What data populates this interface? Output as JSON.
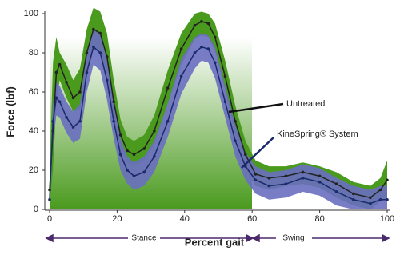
{
  "chart_data": {
    "type": "band-line",
    "x_label": "Percent gait",
    "y_label": "Force (lbf)",
    "xlim": [
      0,
      100
    ],
    "ylim": [
      0,
      100
    ],
    "xticks": [
      0,
      20,
      40,
      60,
      80,
      100
    ],
    "yticks": [
      0,
      20,
      40,
      60,
      80,
      100
    ],
    "x": [
      0,
      1,
      2,
      3,
      5,
      7,
      9,
      11,
      13,
      15,
      17,
      19,
      21,
      23,
      25,
      28,
      31,
      35,
      39,
      43,
      45,
      47,
      49,
      52,
      55,
      58,
      61,
      65,
      70,
      75,
      80,
      85,
      90,
      95,
      98,
      100
    ],
    "series": [
      {
        "name": "Untreated",
        "color": "#222222",
        "band_color": "#4a9a1e",
        "values": [
          10,
          40,
          70,
          74,
          65,
          57,
          60,
          80,
          92,
          90,
          78,
          55,
          38,
          30,
          28,
          31,
          40,
          62,
          82,
          94,
          96,
          95,
          88,
          68,
          45,
          28,
          18,
          16,
          17,
          19,
          17,
          13,
          8,
          6,
          10,
          15
        ],
        "upper": [
          18,
          75,
          88,
          80,
          74,
          66,
          72,
          92,
          103,
          101,
          90,
          66,
          46,
          37,
          35,
          38,
          48,
          71,
          90,
          100,
          101,
          100,
          95,
          76,
          53,
          35,
          25,
          22,
          22,
          24,
          22,
          19,
          14,
          12,
          16,
          25
        ],
        "lower": [
          2,
          20,
          55,
          66,
          57,
          50,
          51,
          70,
          82,
          80,
          68,
          46,
          31,
          24,
          22,
          25,
          33,
          54,
          74,
          87,
          89,
          88,
          81,
          61,
          38,
          21,
          12,
          10,
          12,
          13,
          11,
          6,
          2,
          0,
          4,
          5
        ]
      },
      {
        "name": "KineSpring® System",
        "color": "#1a2a6a",
        "band_color": "#6a6fc0",
        "values": [
          5,
          45,
          57,
          55,
          47,
          42,
          45,
          70,
          83,
          80,
          66,
          45,
          28,
          20,
          17,
          19,
          27,
          45,
          68,
          80,
          83,
          82,
          75,
          55,
          35,
          22,
          15,
          12,
          13,
          16,
          14,
          9,
          5,
          3,
          5,
          5
        ],
        "upper": [
          12,
          55,
          65,
          63,
          55,
          50,
          54,
          80,
          92,
          89,
          76,
          54,
          36,
          27,
          24,
          27,
          35,
          54,
          77,
          88,
          90,
          89,
          83,
          63,
          43,
          29,
          22,
          19,
          20,
          23,
          21,
          16,
          12,
          10,
          12,
          12
        ],
        "lower": [
          1,
          35,
          48,
          47,
          39,
          34,
          36,
          60,
          74,
          71,
          56,
          36,
          20,
          13,
          10,
          12,
          19,
          37,
          59,
          72,
          76,
          75,
          67,
          47,
          27,
          15,
          8,
          5,
          6,
          9,
          7,
          2,
          0,
          0,
          0,
          0
        ]
      }
    ],
    "phases": [
      "Stance",
      "Swing"
    ]
  }
}
